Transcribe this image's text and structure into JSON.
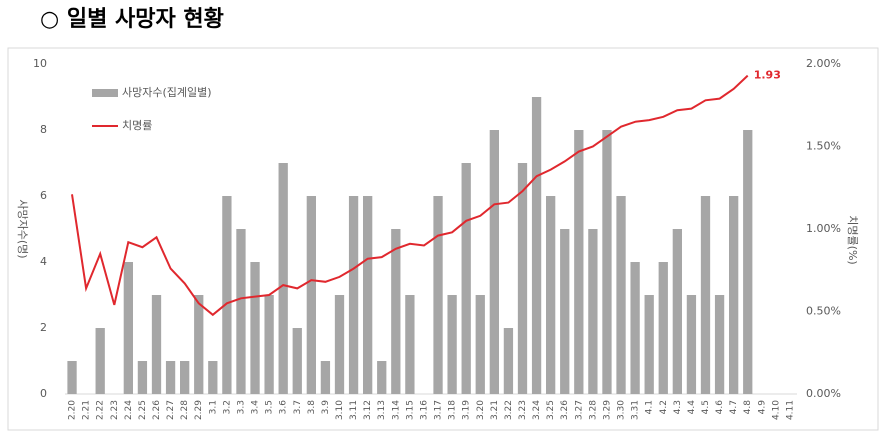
{
  "chart_data": {
    "type": "bar",
    "title": "○ 일별 사망자 현황",
    "y_label": "사망자수(명)",
    "y2_label": "치명률(%)",
    "categories": [
      "2.20",
      "2.21",
      "2.22",
      "2.23",
      "2.24",
      "2.25",
      "2.26",
      "2.27",
      "2.28",
      "2.29",
      "3.1",
      "3.2",
      "3.3",
      "3.4",
      "3.5",
      "3.6",
      "3.7",
      "3.8",
      "3.9",
      "3.10",
      "3.11",
      "3.12",
      "3.13",
      "3.14",
      "3.15",
      "3.16",
      "3.17",
      "3.18",
      "3.19",
      "3.20",
      "3.21",
      "3.22",
      "3.23",
      "3.24",
      "3.25",
      "3.26",
      "3.27",
      "3.28",
      "3.29",
      "3.30",
      "3.31",
      "4.1",
      "4.2",
      "4.3",
      "4.4",
      "4.5",
      "4.6",
      "4.7",
      "4.8",
      "4.9",
      "4.10",
      "4.11"
    ],
    "series": [
      {
        "name": "사망자수(집계일별)",
        "type": "bar",
        "color": "#a6a6a6",
        "values": [
          1,
          0,
          2,
          0,
          4,
          1,
          3,
          1,
          1,
          3,
          1,
          6,
          5,
          4,
          3,
          7,
          2,
          6,
          1,
          3,
          6,
          6,
          1,
          5,
          3,
          0,
          6,
          3,
          7,
          3,
          8,
          2,
          7,
          9,
          6,
          5,
          8,
          5,
          8,
          6,
          4,
          3,
          4,
          5,
          3,
          6,
          3,
          6,
          8,
          null,
          null,
          null
        ]
      },
      {
        "name": "치명률",
        "type": "line",
        "axis": "y2",
        "color": "#e0282e",
        "values": [
          1.21,
          0.64,
          0.85,
          0.54,
          0.92,
          0.89,
          0.95,
          0.76,
          0.67,
          0.55,
          0.48,
          0.55,
          0.58,
          0.59,
          0.6,
          0.66,
          0.64,
          0.69,
          0.68,
          0.71,
          0.76,
          0.82,
          0.83,
          0.88,
          0.91,
          0.9,
          0.96,
          0.98,
          1.05,
          1.08,
          1.15,
          1.16,
          1.23,
          1.32,
          1.36,
          1.41,
          1.47,
          1.5,
          1.56,
          1.62,
          1.65,
          1.66,
          1.68,
          1.72,
          1.73,
          1.78,
          1.79,
          1.85,
          1.93,
          null,
          null,
          null
        ]
      }
    ],
    "ylim": [
      0,
      10
    ],
    "yticks": [
      0,
      2,
      4,
      6,
      8,
      10
    ],
    "y2lim": [
      0,
      2
    ],
    "y2ticks": [
      {
        "value": 0,
        "label": "0.00%"
      },
      {
        "value": 0.5,
        "label": "0.50%"
      },
      {
        "value": 1,
        "label": "1.00%"
      },
      {
        "value": 1.5,
        "label": "1.50%"
      },
      {
        "value": 2,
        "label": "2.00%"
      }
    ],
    "grid": false,
    "legend": "top-left"
  }
}
